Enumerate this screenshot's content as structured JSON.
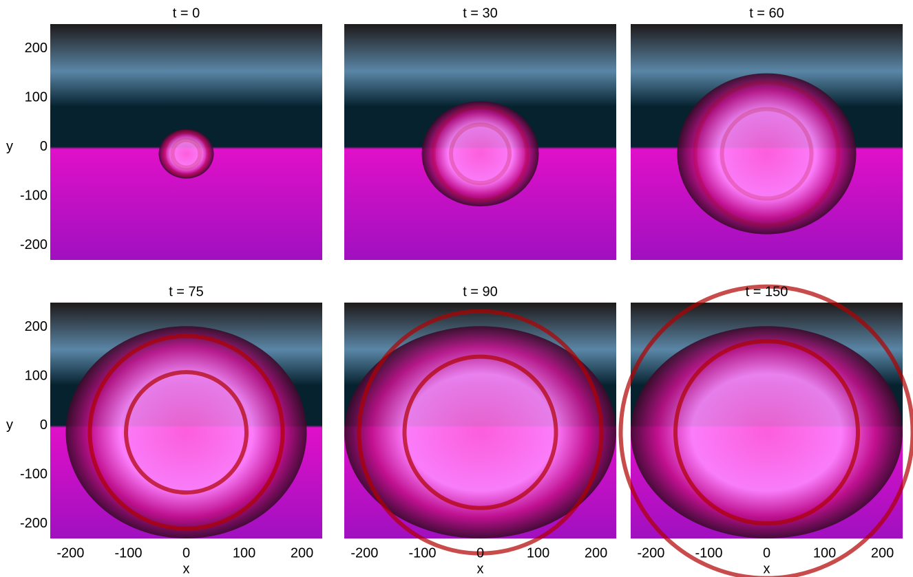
{
  "chart_data": {
    "type": "heatmap",
    "panels": [
      {
        "title": "t = 0"
      },
      {
        "title": "t = 30"
      },
      {
        "title": "t = 60"
      },
      {
        "title": "t = 75"
      },
      {
        "title": "t = 90"
      },
      {
        "title": "t = 150"
      }
    ],
    "xlabel": "x",
    "ylabel": "y",
    "xlim": [
      -235,
      235
    ],
    "ylim": [
      -230,
      250
    ],
    "xticks": [
      -200,
      -100,
      0,
      100,
      200
    ],
    "yticks": [
      -200,
      -100,
      0,
      100,
      200
    ]
  }
}
